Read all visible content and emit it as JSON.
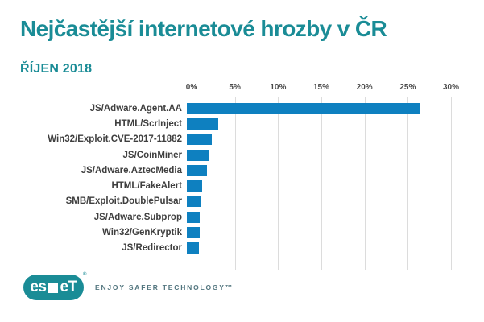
{
  "header": {
    "title": "Nejčastější internetové hrozby v ČR",
    "subtitle": "ŘÍJEN 2018"
  },
  "chart_data": {
    "type": "bar",
    "orientation": "horizontal",
    "title": "Nejčastější internetové hrozby v ČR",
    "subtitle": "ŘÍJEN 2018",
    "categories": [
      "JS/Adware.Agent.AA",
      "HTML/ScrInject",
      "Win32/Exploit.CVE-2017-11882",
      "JS/CoinMiner",
      "JS/Adware.AztecMedia",
      "HTML/FakeAlert",
      "SMB/Exploit.DoublePulsar",
      "JS/Adware.Subprop",
      "Win32/GenKryptik",
      "JS/Redirector"
    ],
    "values": [
      26.9,
      3.6,
      2.9,
      2.6,
      2.3,
      1.8,
      1.7,
      1.5,
      1.5,
      1.4
    ],
    "unit": "%",
    "xlim": [
      0,
      30
    ],
    "x_ticks": [
      0,
      5,
      10,
      15,
      20,
      25,
      30
    ],
    "x_tick_labels": [
      "0%",
      "5%",
      "10%",
      "15%",
      "20%",
      "25%",
      "30%"
    ],
    "grid": true,
    "legend": false,
    "bar_color": "#0e80c0"
  },
  "footer": {
    "logo_text_left": "es",
    "logo_text_right": "eT",
    "logo_registered": "®",
    "tagline": "ENJOY SAFER TECHNOLOGY™"
  },
  "colors": {
    "accent_teal": "#1a8c96",
    "bar_blue": "#0e80c0",
    "gridline": "#dcdcdc",
    "category_label": "#3f3f3f",
    "tick_label": "#4a4a4a",
    "tagline": "#53767f",
    "background": "#ffffff"
  }
}
